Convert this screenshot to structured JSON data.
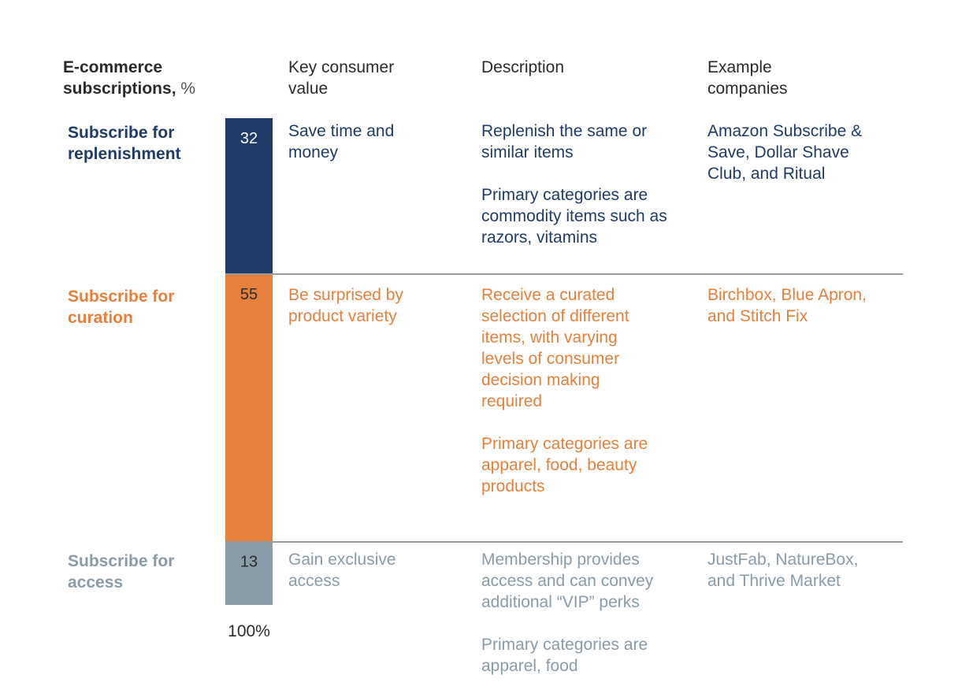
{
  "headers": {
    "segment": "E-commerce subscriptions,",
    "segment_unit": "%",
    "value": "Key consumer value",
    "description": "Description",
    "examples": "Example companies"
  },
  "colors": {
    "replenishment": "#1f3c68",
    "curation": "#e6803c",
    "access": "#8a9ca8"
  },
  "chart_data": {
    "type": "bar",
    "orientation": "stacked-vertical",
    "unit": "%",
    "total_label": "100%",
    "categories": [
      "Subscribe for replenishment",
      "Subscribe for curation",
      "Subscribe for access"
    ],
    "values": [
      32,
      55,
      13
    ],
    "series": [
      {
        "name": "E-commerce subscriptions, %",
        "values": [
          32,
          55,
          13
        ]
      }
    ]
  },
  "rows": [
    {
      "label": "Subscribe for replenishment",
      "value_label": "32",
      "key_value": "Save time and money",
      "desc1": "Replenish the same or similar items",
      "desc2": "Primary categories are commodity items such as razors, vitamins",
      "examples": "Amazon Subscribe & Save, Dollar Shave Club, and Ritual"
    },
    {
      "label": "Subscribe for curation",
      "value_label": "55",
      "key_value": "Be surprised by product variety",
      "desc1": "Receive a curated selection of different items, with varying levels of consumer decision making required",
      "desc2": "Primary categories are apparel, food, beauty products",
      "examples": "Birchbox, Blue Apron, and Stitch Fix"
    },
    {
      "label": "Subscribe for access",
      "value_label": "13",
      "key_value": "Gain exclusive access",
      "desc1": "Membership provides access and can convey additional “VIP” perks",
      "desc2": "Primary categories are apparel, food",
      "examples": "JustFab, NatureBox, and Thrive Market"
    }
  ]
}
